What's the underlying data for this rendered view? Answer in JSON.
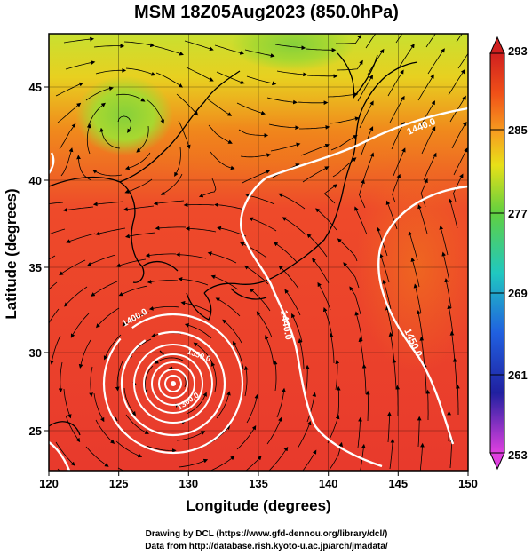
{
  "title": "MSM 18Z05Aug2023 (850.0hPa)",
  "xlabel": "Longitude (degrees)",
  "ylabel": "Latitude  (degrees)",
  "x_ticks": [
    "120",
    "125",
    "130",
    "135",
    "140",
    "145",
    "150"
  ],
  "y_ticks": [
    "25",
    "30",
    "35",
    "40",
    "45"
  ],
  "colorbar": {
    "ticks": [
      "293",
      "285",
      "277",
      "269",
      "261",
      "253"
    ],
    "min": 253,
    "max": 293
  },
  "contours": {
    "label_1440": "1440.0",
    "label_1450": "1450.0",
    "label_1400": "1400.0",
    "label_1350": "1350.0",
    "label_1300": "1300.0"
  },
  "credits": {
    "line1": "Drawing by DCL (https://www.gfd-dennou.org/library/dcl/)",
    "line2": "Data from http://database.rish.kyoto-u.ac.jp/arch/jmadata/"
  },
  "colors": {
    "warm": "#e83a2c",
    "mid": "#f07a1a",
    "yellow": "#e0e020",
    "green": "#86d03a"
  }
}
